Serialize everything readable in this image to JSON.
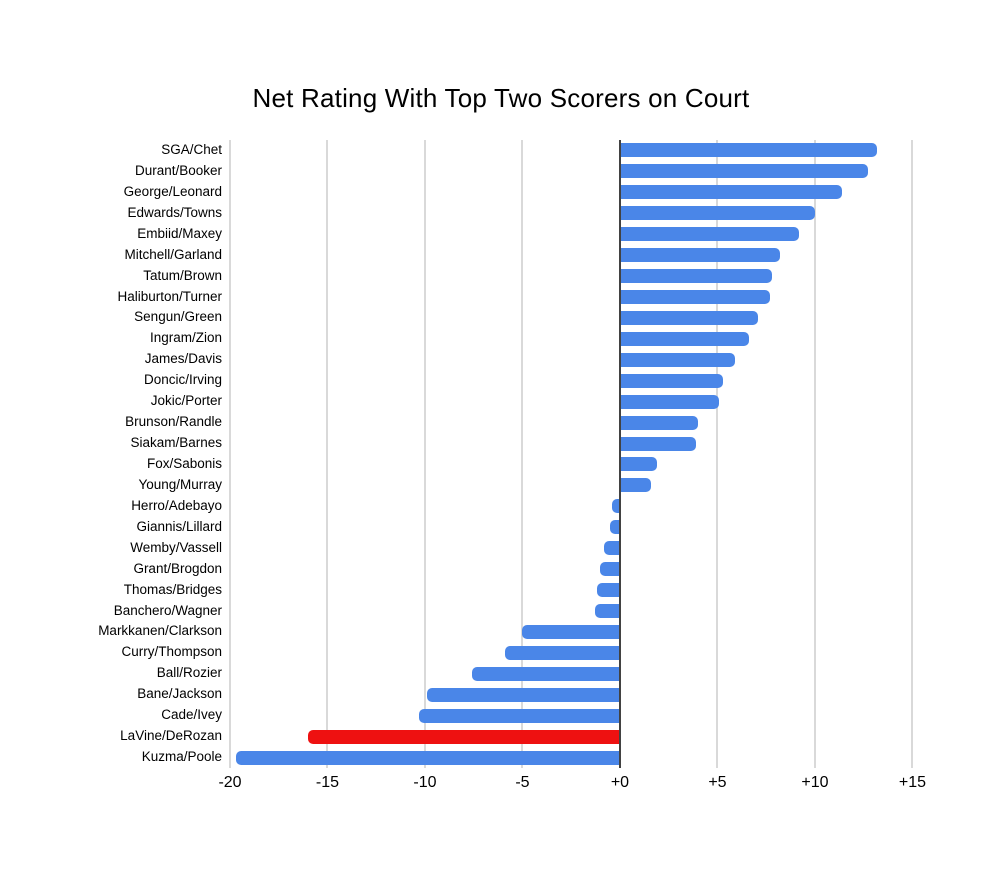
{
  "colors": {
    "background": "#ffffff",
    "bar_default": "#4a86e8",
    "bar_highlight": "#ee1111",
    "gridline": "#d9d9d9",
    "zero_line": "#424242",
    "text": "#000000"
  },
  "chart_data": {
    "type": "bar",
    "orientation": "horizontal",
    "title": "Net Rating With Top Two Scorers on Court",
    "xlabel": "",
    "ylabel": "",
    "grid": true,
    "legend": "none",
    "xlim": [
      -20,
      17.44
    ],
    "x_ticks": [
      {
        "value": -20,
        "label": "-20"
      },
      {
        "value": -15,
        "label": "-15"
      },
      {
        "value": -10,
        "label": "-10"
      },
      {
        "value": -5,
        "label": "-5"
      },
      {
        "value": 0,
        "label": "+0"
      },
      {
        "value": 5,
        "label": "+5"
      },
      {
        "value": 10,
        "label": "+10"
      },
      {
        "value": 15,
        "label": "+15"
      }
    ],
    "categories": [
      "SGA/Chet",
      "Durant/Booker",
      "George/Leonard",
      "Edwards/Towns",
      "Embiid/Maxey",
      "Mitchell/Garland",
      "Tatum/Brown",
      "Haliburton/Turner",
      "Sengun/Green",
      "Ingram/Zion",
      "James/Davis",
      "Doncic/Irving",
      "Jokic/Porter",
      "Brunson/Randle",
      "Siakam/Barnes",
      "Fox/Sabonis",
      "Young/Murray",
      "Herro/Adebayo",
      "Giannis/Lillard",
      "Wemby/Vassell",
      "Grant/Brogdon",
      "Thomas/Bridges",
      "Banchero/Wagner",
      "Markkanen/Clarkson",
      "Curry/Thompson",
      "Ball/Rozier",
      "Bane/Jackson",
      "Cade/Ivey",
      "LaVine/DeRozan",
      "Kuzma/Poole"
    ],
    "values": [
      13.2,
      12.7,
      11.4,
      10.0,
      9.2,
      8.2,
      7.8,
      7.7,
      7.1,
      6.6,
      5.9,
      5.3,
      5.1,
      4.0,
      3.9,
      1.9,
      1.6,
      -0.4,
      -0.5,
      -0.8,
      -1.0,
      -1.2,
      -1.3,
      -5.0,
      -5.9,
      -7.6,
      -9.9,
      -10.3,
      -16.0,
      -19.7
    ],
    "highlighted_category": "LaVine/DeRozan"
  }
}
